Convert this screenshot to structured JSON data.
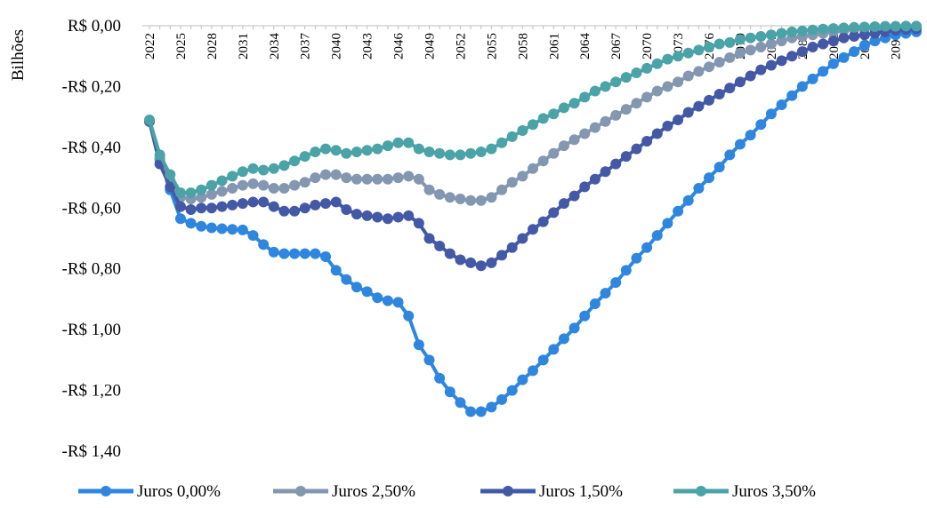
{
  "chart_data": {
    "type": "line",
    "title": "",
    "xlabel": "",
    "ylabel": "Bilhões",
    "ylim": [
      -1.4,
      0.0
    ],
    "yticks": [
      0.0,
      -0.2,
      -0.4,
      -0.6,
      -0.8,
      -1.0,
      -1.2,
      -1.4
    ],
    "ytick_labels": [
      "R$ 0,00",
      "-R$ 0,20",
      "-R$ 0,40",
      "-R$ 0,60",
      "-R$ 0,80",
      "-R$ 1,00",
      "-R$ 1,20",
      "-R$ 1,40"
    ],
    "x": [
      2022,
      2023,
      2024,
      2025,
      2026,
      2027,
      2028,
      2029,
      2030,
      2031,
      2032,
      2033,
      2034,
      2035,
      2036,
      2037,
      2038,
      2039,
      2040,
      2041,
      2042,
      2043,
      2044,
      2045,
      2046,
      2047,
      2048,
      2049,
      2050,
      2051,
      2052,
      2053,
      2054,
      2055,
      2056,
      2057,
      2058,
      2059,
      2060,
      2061,
      2062,
      2063,
      2064,
      2065,
      2066,
      2067,
      2068,
      2069,
      2070,
      2071,
      2072,
      2073,
      2074,
      2075,
      2076,
      2077,
      2078,
      2079,
      2080,
      2081,
      2082,
      2083,
      2084,
      2085,
      2086,
      2087,
      2088,
      2089,
      2090,
      2091,
      2092,
      2093,
      2094,
      2095,
      2096
    ],
    "xtick_labels": [
      "2022",
      "2025",
      "2028",
      "2031",
      "2034",
      "2037",
      "2040",
      "2043",
      "2046",
      "2049",
      "2052",
      "2055",
      "2058",
      "2061",
      "2064",
      "2067",
      "2070",
      "2073",
      "2076",
      "2079",
      "2082",
      "2085",
      "2088",
      "2091",
      "2094"
    ],
    "x_axis_position": "top",
    "grid": false,
    "legend_position": "bottom",
    "series": [
      {
        "name": "Juros 0,00%",
        "color": "#2E86DE",
        "values": [
          -0.315,
          -0.44,
          -0.54,
          -0.635,
          -0.65,
          -0.66,
          -0.665,
          -0.668,
          -0.67,
          -0.672,
          -0.69,
          -0.72,
          -0.745,
          -0.75,
          -0.75,
          -0.75,
          -0.75,
          -0.76,
          -0.805,
          -0.835,
          -0.86,
          -0.875,
          -0.895,
          -0.905,
          -0.91,
          -0.955,
          -1.05,
          -1.1,
          -1.16,
          -1.205,
          -1.24,
          -1.27,
          -1.27,
          -1.255,
          -1.23,
          -1.2,
          -1.165,
          -1.135,
          -1.1,
          -1.065,
          -1.03,
          -0.995,
          -0.955,
          -0.915,
          -0.88,
          -0.845,
          -0.805,
          -0.765,
          -0.73,
          -0.69,
          -0.65,
          -0.61,
          -0.575,
          -0.535,
          -0.5,
          -0.465,
          -0.425,
          -0.39,
          -0.36,
          -0.325,
          -0.29,
          -0.26,
          -0.23,
          -0.2,
          -0.175,
          -0.15,
          -0.125,
          -0.105,
          -0.085,
          -0.065,
          -0.05,
          -0.04,
          -0.03,
          -0.025,
          -0.02
        ]
      },
      {
        "name": "Juros 2,50%",
        "color": "#8497B0",
        "values": [
          -0.315,
          -0.435,
          -0.51,
          -0.565,
          -0.57,
          -0.565,
          -0.555,
          -0.545,
          -0.535,
          -0.525,
          -0.52,
          -0.525,
          -0.535,
          -0.535,
          -0.525,
          -0.515,
          -0.5,
          -0.49,
          -0.49,
          -0.5,
          -0.505,
          -0.505,
          -0.505,
          -0.505,
          -0.5,
          -0.495,
          -0.505,
          -0.54,
          -0.555,
          -0.565,
          -0.57,
          -0.575,
          -0.575,
          -0.565,
          -0.54,
          -0.515,
          -0.495,
          -0.47,
          -0.445,
          -0.42,
          -0.395,
          -0.375,
          -0.355,
          -0.335,
          -0.315,
          -0.295,
          -0.275,
          -0.255,
          -0.235,
          -0.215,
          -0.2,
          -0.185,
          -0.165,
          -0.15,
          -0.135,
          -0.12,
          -0.105,
          -0.09,
          -0.08,
          -0.07,
          -0.06,
          -0.05,
          -0.04,
          -0.035,
          -0.03,
          -0.025,
          -0.02,
          -0.015,
          -0.012,
          -0.01,
          -0.008,
          -0.006,
          -0.005,
          -0.004,
          -0.003
        ]
      },
      {
        "name": "Juros 1,50%",
        "color": "#4459A6",
        "values": [
          -0.315,
          -0.455,
          -0.53,
          -0.595,
          -0.605,
          -0.6,
          -0.6,
          -0.595,
          -0.59,
          -0.585,
          -0.58,
          -0.58,
          -0.595,
          -0.61,
          -0.61,
          -0.6,
          -0.59,
          -0.585,
          -0.58,
          -0.605,
          -0.62,
          -0.625,
          -0.63,
          -0.635,
          -0.63,
          -0.625,
          -0.65,
          -0.7,
          -0.725,
          -0.75,
          -0.77,
          -0.78,
          -0.79,
          -0.78,
          -0.755,
          -0.73,
          -0.7,
          -0.67,
          -0.645,
          -0.615,
          -0.585,
          -0.56,
          -0.53,
          -0.505,
          -0.48,
          -0.455,
          -0.43,
          -0.405,
          -0.38,
          -0.355,
          -0.33,
          -0.31,
          -0.285,
          -0.265,
          -0.245,
          -0.225,
          -0.205,
          -0.185,
          -0.165,
          -0.145,
          -0.13,
          -0.115,
          -0.1,
          -0.085,
          -0.07,
          -0.06,
          -0.05,
          -0.04,
          -0.035,
          -0.03,
          -0.025,
          -0.02,
          -0.015,
          -0.012,
          -0.01
        ]
      },
      {
        "name": "Juros 3,50%",
        "color": "#4AA3A6",
        "values": [
          -0.31,
          -0.425,
          -0.49,
          -0.55,
          -0.55,
          -0.54,
          -0.525,
          -0.51,
          -0.495,
          -0.48,
          -0.47,
          -0.475,
          -0.47,
          -0.46,
          -0.445,
          -0.43,
          -0.415,
          -0.405,
          -0.41,
          -0.42,
          -0.415,
          -0.41,
          -0.405,
          -0.395,
          -0.385,
          -0.385,
          -0.405,
          -0.415,
          -0.42,
          -0.425,
          -0.425,
          -0.42,
          -0.415,
          -0.405,
          -0.385,
          -0.365,
          -0.345,
          -0.325,
          -0.305,
          -0.29,
          -0.27,
          -0.255,
          -0.235,
          -0.215,
          -0.2,
          -0.185,
          -0.17,
          -0.155,
          -0.14,
          -0.125,
          -0.11,
          -0.1,
          -0.09,
          -0.08,
          -0.07,
          -0.06,
          -0.055,
          -0.045,
          -0.04,
          -0.035,
          -0.03,
          -0.025,
          -0.02,
          -0.017,
          -0.014,
          -0.011,
          -0.009,
          -0.007,
          -0.005,
          -0.004,
          -0.003,
          -0.002,
          -0.002,
          -0.001,
          -0.001
        ]
      }
    ]
  }
}
